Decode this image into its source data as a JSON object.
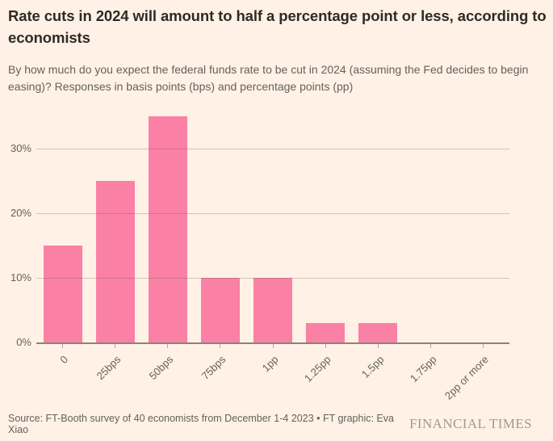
{
  "header": {
    "title": "Rate cuts in 2024 will amount to half a percentage point or less, according to economists",
    "subtitle": "By how much do you expect the federal funds rate to be cut in 2024 (assuming the Fed decides to begin easing)? Responses in basis points (bps) and percentage points (pp)"
  },
  "chart_data": {
    "type": "bar",
    "categories": [
      "0",
      "25bps",
      "50bps",
      "75bps",
      "1pp",
      "1.25pp",
      "1.5pp",
      "1.75pp",
      "2pp or more"
    ],
    "values": [
      15,
      25,
      35,
      10,
      10,
      3,
      3,
      0,
      0
    ],
    "title": "",
    "xlabel": "",
    "ylabel": "",
    "ylim": [
      0,
      37.5
    ],
    "yticks": [
      0,
      10,
      20,
      30
    ],
    "ytick_format": "{v}%",
    "grid": true,
    "legend": "none",
    "x_label_rotation_deg": -45
  },
  "colors": {
    "background": "#fff1e5",
    "bar": "#fa80a5",
    "axis": "#8c8378",
    "tick": "#b3a89d",
    "text_dark": "#2e2a26",
    "text_muted": "#66605b",
    "brand": "#a29a90"
  },
  "footer": {
    "source": "Source: FT-Booth survey of 40 economists from December 1-4 2023 • FT graphic: Eva Xiao",
    "brand": "FINANCIAL TIMES"
  }
}
